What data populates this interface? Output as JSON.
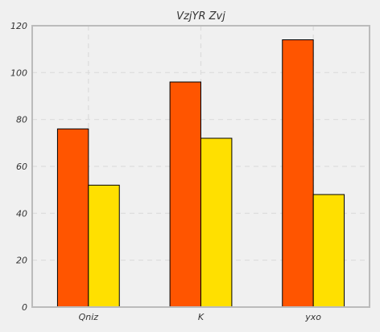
{
  "chart_data": {
    "type": "bar",
    "title": "VzjYR Zvj",
    "xlabel": "",
    "ylabel": "",
    "categories": [
      "Qniz",
      "K",
      "yxo"
    ],
    "series": [
      {
        "values": [
          76,
          96,
          114
        ],
        "color": "#ff5500"
      },
      {
        "values": [
          52,
          72,
          48
        ],
        "color": "#ffe000"
      }
    ],
    "ylim": [
      0,
      120
    ],
    "yticks": [
      "0",
      "20",
      "40",
      "60",
      "80",
      "100",
      "120"
    ],
    "grid": true,
    "legend": "none"
  },
  "colors": {
    "background": "#f0f0f0",
    "plot_background": "#f0f0f0",
    "grid": "#dcdcdc",
    "frame": "#bbbbbb",
    "bar_edge": "#000000"
  }
}
